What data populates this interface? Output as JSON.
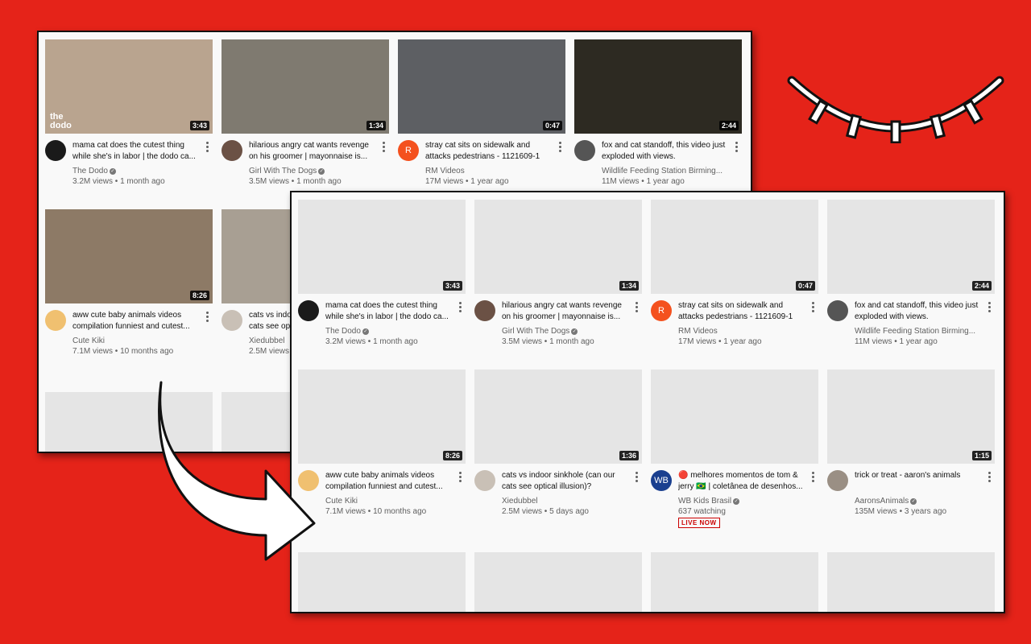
{
  "videos": [
    {
      "title": "mama cat does the cutest thing while she's in labor | the dodo ca...",
      "channel": "The Dodo",
      "verified": true,
      "views": "3.2M views",
      "age": "1 month ago",
      "duration": "3:43",
      "avatar_letter": "",
      "avatar_color": "#1a1a1a",
      "thumb_color": "#b9a48f",
      "thumb_logo": "the dodo"
    },
    {
      "title": "hilarious angry cat wants revenge on his groomer | mayonnaise is...",
      "channel": "Girl With The Dogs",
      "verified": true,
      "views": "3.5M views",
      "age": "1 month ago",
      "duration": "1:34",
      "avatar_letter": "",
      "avatar_color": "#6b5145",
      "thumb_color": "#7f7a70"
    },
    {
      "title": "stray cat sits on sidewalk and attacks pedestrians - 1121609-1",
      "channel": "RM Videos",
      "verified": false,
      "views": "17M views",
      "age": "1 year ago",
      "duration": "0:47",
      "avatar_letter": "R",
      "avatar_color": "#f4511e",
      "thumb_color": "#5d5f63"
    },
    {
      "title": "fox and cat standoff, this video just exploded with views.",
      "channel": "Wildlife Feeding Station Birming...",
      "verified": false,
      "views": "11M views",
      "age": "1 year ago",
      "duration": "2:44",
      "avatar_letter": "",
      "avatar_color": "#555",
      "thumb_color": "#2d2a22"
    },
    {
      "title": "aww cute baby animals videos compilation funniest and cutest...",
      "channel": "Cute Kiki",
      "verified": false,
      "views": "7.1M views",
      "age": "10 months ago",
      "duration": "8:26",
      "avatar_letter": "",
      "avatar_color": "#f0c070",
      "thumb_color": "#8d7a66"
    },
    {
      "title": "cats vs indoor sinkhole (can our cats see optical illusion)?",
      "channel": "Xiedubbel",
      "verified": false,
      "views": "2.5M views",
      "age": "5 days ago",
      "duration": "1:36",
      "avatar_letter": "",
      "avatar_color": "#c9c0b6",
      "thumb_color": "#a89f93"
    },
    {
      "title": "🔴 melhores momentos de tom & jerry 🇧🇷 | coletânea de desenhos...",
      "channel": "WB Kids Brasil",
      "verified": true,
      "views": "637 watching",
      "age": "",
      "duration": "",
      "live_badge": "LIVE NOW",
      "avatar_letter": "WB",
      "avatar_color": "#1a3f8f",
      "thumb_color": "#e5e5e5"
    },
    {
      "title": "trick or treat - aaron's animals",
      "channel": "AaronsAnimals",
      "verified": true,
      "views": "135M views",
      "age": "3 years ago",
      "duration": "1:15",
      "avatar_letter": "",
      "avatar_color": "#9a8f84",
      "thumb_color": "#e5e5e5"
    }
  ],
  "colors": {
    "background": "#e52319",
    "placeholder": "#e5e5e5",
    "live": "#cc0000"
  }
}
